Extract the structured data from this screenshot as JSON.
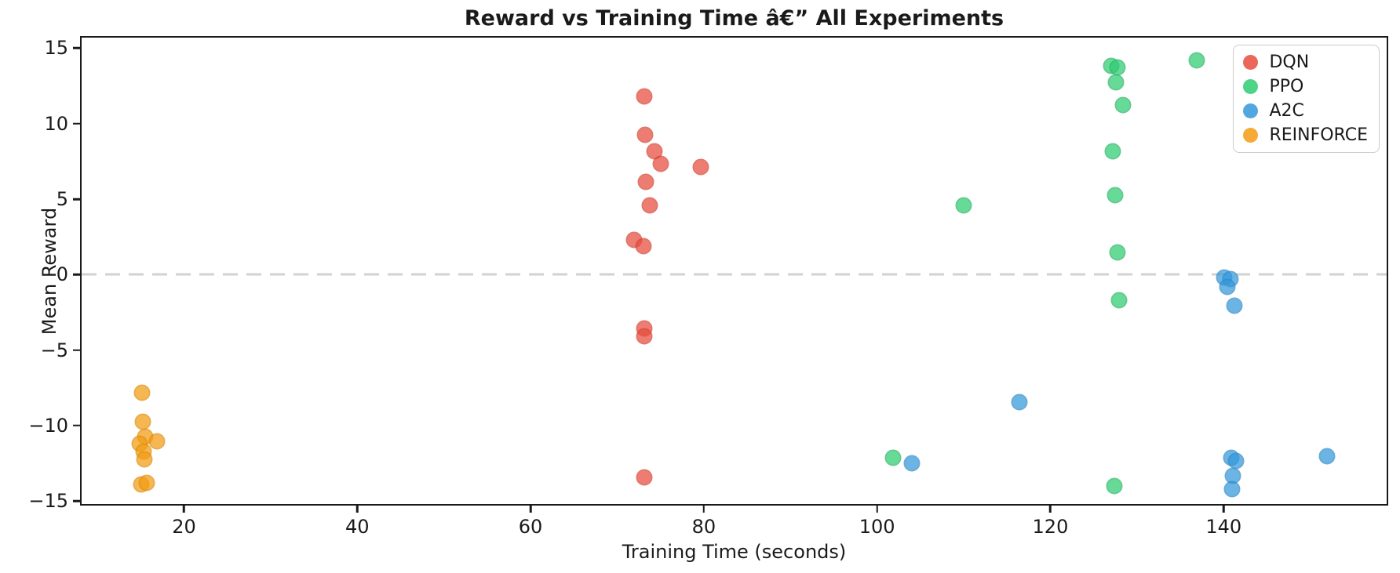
{
  "title": "Reward vs Training Time â€” All Experiments",
  "xlabel": "Training Time (seconds)",
  "ylabel": "Mean Reward",
  "chart_data": {
    "type": "scatter",
    "title": "Reward vs Training Time â€” All Experiments",
    "xlabel": "Training Time (seconds)",
    "ylabel": "Mean Reward",
    "xlim": [
      8,
      159
    ],
    "ylim": [
      -15.3,
      15.8
    ],
    "grid": false,
    "legend_position": "upper right",
    "x_ticks": [
      20,
      40,
      60,
      80,
      100,
      120,
      140
    ],
    "x_tick_labels": [
      "20",
      "40",
      "60",
      "80",
      "100",
      "120",
      "140"
    ],
    "y_ticks": [
      15,
      10,
      5,
      0,
      -5,
      -10,
      -15
    ],
    "y_tick_labels": [
      "15",
      "10",
      "5",
      "0",
      "−5",
      "−10",
      "−15"
    ],
    "ref_line": {
      "y": 0,
      "style": "dashed",
      "color": "#d2d2d2"
    },
    "series": [
      {
        "name": "DQN",
        "color": "#e74c3c",
        "edge": "#d84335",
        "points": [
          [
            73.1,
            11.9
          ],
          [
            73.2,
            9.3
          ],
          [
            74.3,
            8.2
          ],
          [
            75.0,
            7.4
          ],
          [
            79.6,
            7.2
          ],
          [
            73.3,
            6.2
          ],
          [
            73.7,
            4.6
          ],
          [
            71.9,
            2.3
          ],
          [
            73.0,
            1.9
          ],
          [
            73.1,
            -3.6
          ],
          [
            73.1,
            -4.1
          ],
          [
            73.1,
            -13.5
          ]
        ]
      },
      {
        "name": "PPO",
        "color": "#2ecc71",
        "edge": "#29b865",
        "points": [
          [
            110.1,
            4.6
          ],
          [
            101.9,
            -12.2
          ],
          [
            127.1,
            13.9
          ],
          [
            127.9,
            13.8
          ],
          [
            127.7,
            12.8
          ],
          [
            128.5,
            11.3
          ],
          [
            127.3,
            8.2
          ],
          [
            127.6,
            5.3
          ],
          [
            127.9,
            1.5
          ],
          [
            128.0,
            -1.7
          ],
          [
            127.5,
            -14.1
          ],
          [
            137.0,
            14.3
          ]
        ]
      },
      {
        "name": "A2C",
        "color": "#3498db",
        "edge": "#2f8ccb",
        "points": [
          [
            104.1,
            -12.6
          ],
          [
            116.5,
            -8.5
          ],
          [
            140.2,
            -0.2
          ],
          [
            140.9,
            -0.3
          ],
          [
            140.6,
            -0.8
          ],
          [
            141.4,
            -2.1
          ],
          [
            141.0,
            -12.2
          ],
          [
            141.6,
            -12.4
          ],
          [
            141.2,
            -13.4
          ],
          [
            141.1,
            -14.3
          ],
          [
            152.1,
            -12.1
          ]
        ]
      },
      {
        "name": "REINFORCE",
        "color": "#f39c12",
        "edge": "#e08e0b",
        "points": [
          [
            15.0,
            -7.9
          ],
          [
            15.1,
            -9.8
          ],
          [
            15.4,
            -10.8
          ],
          [
            16.7,
            -11.1
          ],
          [
            14.7,
            -11.3
          ],
          [
            15.2,
            -11.8
          ],
          [
            15.3,
            -12.3
          ],
          [
            14.9,
            -14.0
          ],
          [
            15.5,
            -13.9
          ]
        ]
      }
    ]
  }
}
